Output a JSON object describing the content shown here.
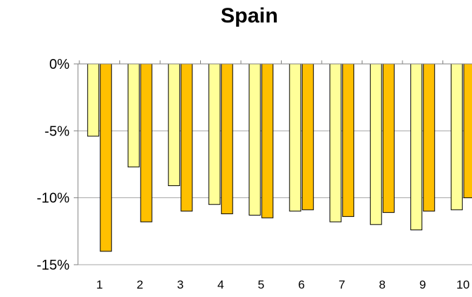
{
  "chart_data": {
    "type": "bar",
    "title": "Spain",
    "xlabel": "",
    "ylabel": "",
    "ylim": [
      -15,
      0
    ],
    "yticks": [
      0,
      -5,
      -10,
      -15
    ],
    "ytick_labels": [
      "0%",
      "-5%",
      "-10%",
      "-15%"
    ],
    "categories": [
      "1",
      "2",
      "3",
      "4",
      "5",
      "6",
      "7",
      "8",
      "9",
      "10"
    ],
    "series": [
      {
        "color": "#FFFF99",
        "values": [
          -5.4,
          -7.7,
          -9.1,
          -10.5,
          -11.3,
          -11.0,
          -11.8,
          -12.0,
          -12.4,
          -10.9
        ]
      },
      {
        "color": "#FFC000",
        "values": [
          -14.0,
          -11.8,
          -11.0,
          -11.2,
          -11.5,
          -10.9,
          -11.4,
          -11.1,
          -11.0,
          -10.0
        ]
      }
    ],
    "grid": true,
    "legend": "none"
  }
}
